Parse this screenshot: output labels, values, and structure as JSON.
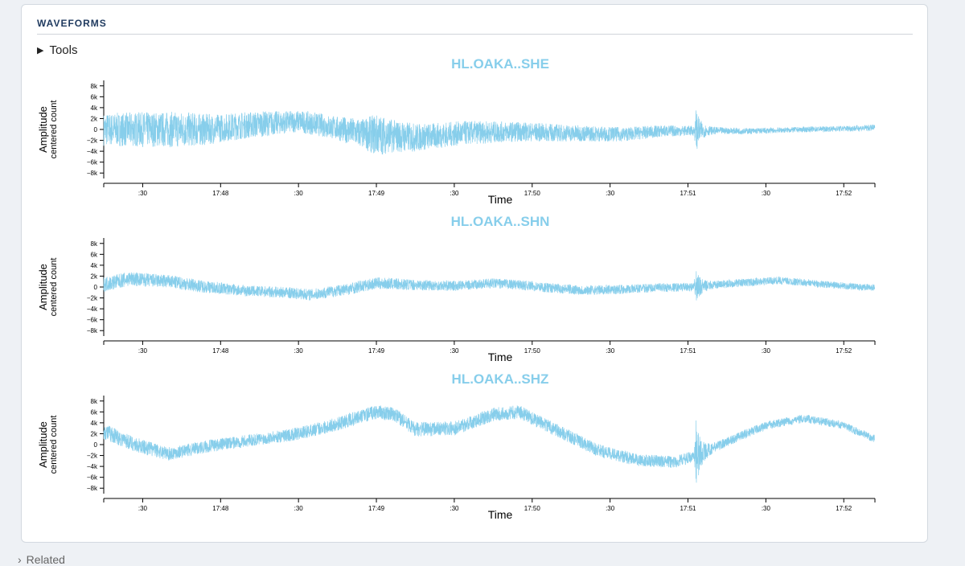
{
  "panel": {
    "title": "WAVEFORMS",
    "tools_label": "Tools",
    "tools_icon": "triangle-right-icon"
  },
  "footer": {
    "label": "Related",
    "icon": "chevron-right-icon"
  },
  "colors": {
    "trace": "#87ceeb",
    "title": "#87ceeb",
    "axis": "#000000",
    "header": "#1f3a5f"
  },
  "chart_data": [
    {
      "type": "line",
      "title": "HL.OAKA..SHE",
      "ylabel": "Amplitude",
      "ylabel_sub": "centered count",
      "xlabel": "Time",
      "yticks": [
        "8k",
        "6k",
        "4k",
        "2k",
        "0",
        "−2k",
        "−4k",
        "−6k",
        "−8k"
      ],
      "ylim": [
        -9000,
        9000
      ],
      "xticks": [
        ":30",
        "17:48",
        ":30",
        "17:49",
        ":30",
        "17:50",
        ":30",
        "17:51",
        ":30",
        "17:52"
      ],
      "x_range_sec": [
        0,
        297
      ],
      "tick_times_sec": [
        15,
        45,
        75,
        105,
        135,
        165,
        195,
        225,
        255,
        285
      ],
      "baseline": [
        [
          0,
          0
        ],
        [
          20,
          0
        ],
        [
          40,
          0
        ],
        [
          55,
          800
        ],
        [
          75,
          1500
        ],
        [
          85,
          700
        ],
        [
          100,
          -800
        ],
        [
          120,
          -1500
        ],
        [
          140,
          -600
        ],
        [
          160,
          -400
        ],
        [
          180,
          -700
        ],
        [
          200,
          -900
        ],
        [
          215,
          -300
        ],
        [
          230,
          -200
        ],
        [
          250,
          -300
        ],
        [
          270,
          0
        ],
        [
          297,
          300
        ]
      ],
      "envelope": [
        [
          0,
          3000
        ],
        [
          15,
          3200
        ],
        [
          30,
          3300
        ],
        [
          45,
          2600
        ],
        [
          60,
          2400
        ],
        [
          72,
          2000
        ],
        [
          90,
          2200
        ],
        [
          100,
          2800
        ],
        [
          105,
          3800
        ],
        [
          112,
          3000
        ],
        [
          125,
          2400
        ],
        [
          140,
          2200
        ],
        [
          160,
          1800
        ],
        [
          175,
          1600
        ],
        [
          200,
          1300
        ],
        [
          215,
          1100
        ],
        [
          227,
          900
        ],
        [
          240,
          600
        ],
        [
          260,
          500
        ],
        [
          280,
          500
        ],
        [
          297,
          600
        ]
      ],
      "events": [
        {
          "t": 228,
          "amp": 3500
        }
      ]
    },
    {
      "type": "line",
      "title": "HL.OAKA..SHN",
      "ylabel": "Amplitude",
      "ylabel_sub": "centered count",
      "xlabel": "Time",
      "yticks": [
        "8k",
        "6k",
        "4k",
        "2k",
        "0",
        "−2k",
        "−4k",
        "−6k",
        "−8k"
      ],
      "ylim": [
        -9000,
        9000
      ],
      "xticks": [
        ":30",
        "17:48",
        ":30",
        "17:49",
        ":30",
        "17:50",
        ":30",
        "17:51",
        ":30",
        "17:52"
      ],
      "x_range_sec": [
        0,
        297
      ],
      "tick_times_sec": [
        15,
        45,
        75,
        105,
        135,
        165,
        195,
        225,
        255,
        285
      ],
      "baseline": [
        [
          0,
          500
        ],
        [
          10,
          1500
        ],
        [
          25,
          1000
        ],
        [
          40,
          0
        ],
        [
          55,
          -700
        ],
        [
          70,
          -1000
        ],
        [
          80,
          -1400
        ],
        [
          95,
          -300
        ],
        [
          105,
          700
        ],
        [
          120,
          400
        ],
        [
          135,
          200
        ],
        [
          150,
          700
        ],
        [
          160,
          400
        ],
        [
          170,
          -100
        ],
        [
          185,
          -600
        ],
        [
          200,
          -400
        ],
        [
          215,
          -100
        ],
        [
          228,
          0
        ],
        [
          240,
          600
        ],
        [
          260,
          1200
        ],
        [
          275,
          600
        ],
        [
          290,
          0
        ],
        [
          297,
          -100
        ]
      ],
      "envelope": [
        [
          0,
          1400
        ],
        [
          30,
          1200
        ],
        [
          60,
          1000
        ],
        [
          100,
          1100
        ],
        [
          140,
          900
        ],
        [
          180,
          900
        ],
        [
          220,
          800
        ],
        [
          260,
          700
        ],
        [
          297,
          600
        ]
      ],
      "events": [
        {
          "t": 228,
          "amp": 2700
        }
      ]
    },
    {
      "type": "line",
      "title": "HL.OAKA..SHZ",
      "ylabel": "Amplitude",
      "ylabel_sub": "centered count",
      "xlabel": "Time",
      "yticks": [
        "8k",
        "6k",
        "4k",
        "2k",
        "0",
        "−2k",
        "−4k",
        "−6k",
        "−8k"
      ],
      "ylim": [
        -9000,
        9000
      ],
      "xticks": [
        ":30",
        "17:48",
        ":30",
        "17:49",
        ":30",
        "17:50",
        ":30",
        "17:51",
        ":30",
        "17:52"
      ],
      "x_range_sec": [
        0,
        297
      ],
      "tick_times_sec": [
        15,
        45,
        75,
        105,
        135,
        165,
        195,
        225,
        255,
        285
      ],
      "baseline": [
        [
          0,
          2500
        ],
        [
          12,
          0
        ],
        [
          25,
          -1700
        ],
        [
          40,
          -300
        ],
        [
          60,
          1000
        ],
        [
          75,
          2000
        ],
        [
          90,
          3800
        ],
        [
          105,
          6000
        ],
        [
          112,
          5500
        ],
        [
          120,
          2800
        ],
        [
          135,
          3000
        ],
        [
          150,
          5500
        ],
        [
          160,
          6000
        ],
        [
          175,
          2500
        ],
        [
          190,
          -1000
        ],
        [
          205,
          -2800
        ],
        [
          220,
          -3200
        ],
        [
          228,
          -2000
        ],
        [
          240,
          500
        ],
        [
          255,
          3500
        ],
        [
          270,
          4800
        ],
        [
          285,
          3500
        ],
        [
          297,
          1000
        ]
      ],
      "envelope": [
        [
          0,
          1500
        ],
        [
          30,
          1200
        ],
        [
          60,
          1100
        ],
        [
          100,
          1300
        ],
        [
          140,
          1300
        ],
        [
          180,
          1200
        ],
        [
          220,
          1100
        ],
        [
          250,
          800
        ],
        [
          297,
          700
        ]
      ],
      "events": [
        {
          "t": 228,
          "amp": 6500
        }
      ]
    }
  ]
}
